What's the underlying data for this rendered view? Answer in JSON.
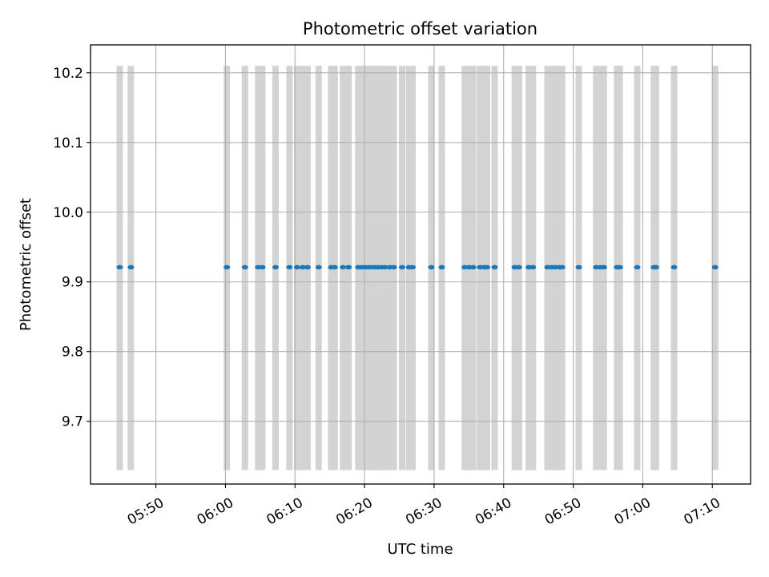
{
  "chart_data": {
    "type": "scatter",
    "title": "Photometric offset variation",
    "xlabel": "UTC time",
    "ylabel": "Photometric offset",
    "x_ticks": [
      "05:50",
      "06:00",
      "06:10",
      "06:20",
      "06:30",
      "06:40",
      "06:50",
      "07:00",
      "07:10"
    ],
    "y_ticks": [
      "9.7",
      "9.8",
      "9.9",
      "10.0",
      "10.1",
      "10.2"
    ],
    "xlim": [
      "05:40.6",
      "07:15.5"
    ],
    "ylim": [
      9.61,
      10.24
    ],
    "grid": true,
    "marker_color": "#1f77b4",
    "band_color": "#d3d3d3",
    "band_yrange": [
      9.63,
      10.21
    ],
    "x": [
      "05:44.8",
      "05:46.4",
      "06:00.2",
      "06:02.8",
      "06:04.7",
      "06:05.3",
      "06:07.2",
      "06:09.2",
      "06:10.3",
      "06:11.1",
      "06:11.8",
      "06:13.4",
      "06:15.2",
      "06:15.7",
      "06:16.9",
      "06:17.7",
      "06:19.1",
      "06:19.6",
      "06:20.1",
      "06:20.6",
      "06:21.0",
      "06:21.5",
      "06:21.9",
      "06:22.4",
      "06:22.9",
      "06:23.6",
      "06:24.2",
      "06:25.4",
      "06:26.4",
      "06:26.9",
      "06:29.6",
      "06:31.1",
      "06:34.4",
      "06:35.0",
      "06:35.6",
      "06:36.6",
      "06:37.2",
      "06:37.6",
      "06:38.7",
      "06:41.6",
      "06:42.2",
      "06:43.6",
      "06:44.2",
      "06:46.3",
      "06:46.9",
      "06:47.4",
      "06:48.0",
      "06:48.4",
      "06:50.8",
      "06:53.3",
      "06:53.9",
      "06:54.4",
      "06:56.3",
      "06:56.7",
      "06:59.2",
      "07:01.6",
      "07:01.9",
      "07:04.5",
      "07:10.4"
    ],
    "y": [
      9.921,
      9.921,
      9.921,
      9.921,
      9.921,
      9.921,
      9.921,
      9.921,
      9.921,
      9.921,
      9.921,
      9.921,
      9.921,
      9.921,
      9.921,
      9.921,
      9.921,
      9.921,
      9.921,
      9.921,
      9.921,
      9.921,
      9.921,
      9.921,
      9.921,
      9.921,
      9.921,
      9.921,
      9.921,
      9.921,
      9.921,
      9.921,
      9.921,
      9.921,
      9.921,
      9.921,
      9.921,
      9.921,
      9.921,
      9.921,
      9.921,
      9.921,
      9.921,
      9.921,
      9.921,
      9.921,
      9.921,
      9.921,
      9.921,
      9.921,
      9.921,
      9.921,
      9.921,
      9.921,
      9.921,
      9.921,
      9.921,
      9.921,
      9.921
    ]
  }
}
